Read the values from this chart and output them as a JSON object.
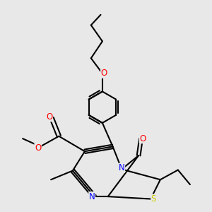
{
  "bg_color": "#e8e8e8",
  "bond_color": "#000000",
  "line_width": 1.5,
  "atom_colors": {
    "O": "#ff0000",
    "N": "#0000ff",
    "S": "#cccc00",
    "C": "#000000"
  },
  "font_size": 8.5,
  "fig_width": 3.0,
  "fig_height": 3.0,
  "dpi": 100
}
